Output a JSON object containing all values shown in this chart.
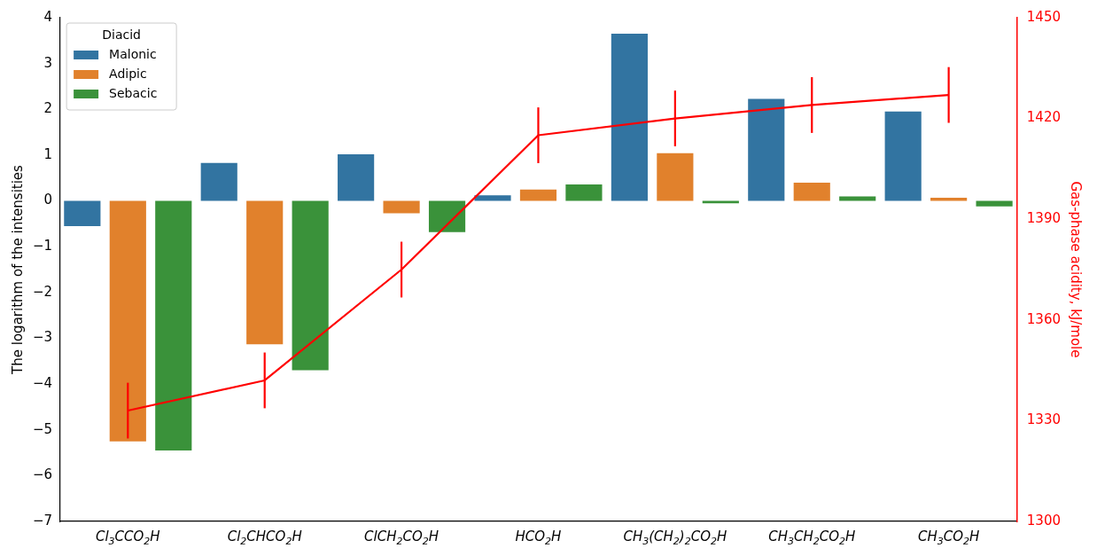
{
  "chart_data": {
    "type": "bar",
    "categories": [
      "Cl$_{3}$CCO$_{2}$H",
      "Cl$_{2}$CHCO$_{2}$H",
      "ClCH$_{2}$CO$_{2}$H",
      "HCO$_{2}$H",
      "CH$_{3}$(CH$_{2}$)$_{2}$CO$_{2}$H",
      "CH$_{3}$CH$_{2}$CO$_{2}$H",
      "CH$_{3}$CO$_{2}$H"
    ],
    "series": [
      {
        "name": "Malonic",
        "color": "#3274a1",
        "values": [
          -0.55,
          0.83,
          1.02,
          0.12,
          3.65,
          2.23,
          1.95
        ]
      },
      {
        "name": "Adipic",
        "color": "#e1812c",
        "values": [
          -5.25,
          -3.13,
          -0.27,
          0.25,
          1.04,
          0.4,
          0.07
        ]
      },
      {
        "name": "Sebacic",
        "color": "#3a923a",
        "values": [
          -5.45,
          -3.7,
          -0.68,
          0.36,
          -0.05,
          0.1,
          -0.12
        ]
      },
      {
        "type": "line",
        "axis": "y2",
        "color": "#ff0000",
        "values": [
          1333,
          1342,
          1375,
          1415,
          1420,
          1424,
          1427
        ],
        "errors": [
          8.3,
          8.3,
          8.3,
          8.3,
          8.3,
          8.3,
          8.3
        ]
      }
    ],
    "ylabel": "The logarithm of the intensities",
    "y2label": "Gas-phase acidity, kJ/mole",
    "ylim": [
      -7,
      4
    ],
    "yticks": [
      -7,
      -6,
      -5,
      -4,
      -3,
      -2,
      -1,
      0,
      1,
      2,
      3,
      4
    ],
    "y2lim": [
      1300,
      1450
    ],
    "y2ticks": [
      1300,
      1330,
      1360,
      1390,
      1420,
      1450
    ],
    "legend": "top left",
    "legend_title": "Diacid",
    "grid": false
  }
}
